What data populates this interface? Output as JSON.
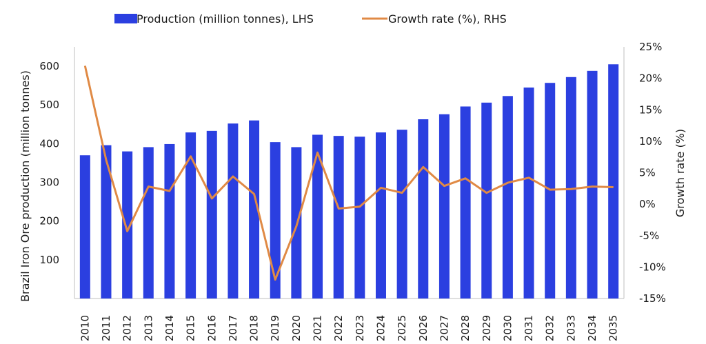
{
  "chart_data": {
    "type": "bar",
    "title": "",
    "categories": [
      "2010",
      "2011",
      "2012",
      "2013",
      "2014",
      "2015",
      "2016",
      "2017",
      "2018",
      "2019",
      "2020",
      "2021",
      "2022",
      "2023",
      "2024",
      "2025",
      "2026",
      "2027",
      "2028",
      "2029",
      "2030",
      "2031",
      "2032",
      "2033",
      "2034",
      "2035"
    ],
    "series": [
      {
        "name": "Production (million tonnes), LHS",
        "type": "bar",
        "axis": "left",
        "color": "#2b3fe0",
        "values": [
          370,
          396,
          380,
          391,
          399,
          429,
          433,
          452,
          460,
          404,
          391,
          423,
          420,
          418,
          429,
          436,
          463,
          476,
          496,
          506,
          523,
          545,
          557,
          572,
          588,
          605
        ]
      },
      {
        "name": "Growth rate (%), RHS",
        "type": "line",
        "axis": "right",
        "color": "#e08a45",
        "values": [
          22.0,
          7.0,
          -4.3,
          2.8,
          2.1,
          7.6,
          0.9,
          4.4,
          1.6,
          -12.0,
          -3.5,
          8.2,
          -0.7,
          -0.4,
          2.6,
          1.8,
          5.9,
          2.9,
          4.1,
          1.8,
          3.4,
          4.2,
          2.3,
          2.4,
          2.8,
          2.7
        ]
      }
    ],
    "ylabel": "Brazil Iron Ore production (million tonnes)",
    "y2label": "Growth rate (%)",
    "xlabel": "",
    "ylim": [
      0,
      650
    ],
    "y_ticks": [
      100,
      200,
      300,
      400,
      500,
      600
    ],
    "y2lim": [
      -15,
      25
    ],
    "y2_ticks": [
      "25%",
      "20%",
      "15%",
      "10%",
      "5%",
      "0%",
      "-5%",
      "-10%",
      "-15%"
    ],
    "grid": false,
    "legend_position": "top-center"
  }
}
